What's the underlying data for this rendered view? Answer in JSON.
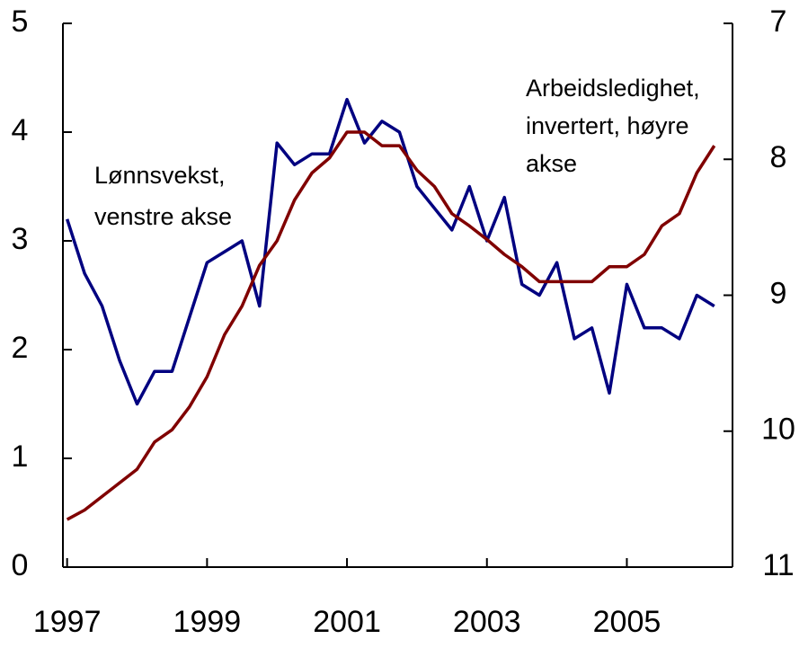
{
  "chart_data": {
    "type": "line",
    "x": [
      1997,
      1997.25,
      1997.5,
      1997.75,
      1998,
      1998.25,
      1998.5,
      1998.75,
      1999,
      1999.25,
      1999.5,
      1999.75,
      2000,
      2000.25,
      2000.5,
      2000.75,
      2001,
      2001.25,
      2001.5,
      2001.75,
      2002,
      2002.25,
      2002.5,
      2002.75,
      2003,
      2003.25,
      2003.5,
      2003.75,
      2004,
      2004.25,
      2004.5,
      2004.75,
      2005,
      2005.25,
      2005.5,
      2005.75,
      2006,
      2006.25
    ],
    "series": [
      {
        "color": "#000080",
        "axis": "y",
        "values": [
          3.2,
          2.7,
          2.4,
          1.9,
          1.5,
          1.8,
          1.8,
          2.3,
          2.8,
          2.9,
          3.0,
          2.4,
          3.9,
          3.7,
          3.8,
          3.8,
          4.3,
          3.9,
          4.1,
          4.0,
          3.5,
          3.3,
          3.1,
          3.5,
          3.0,
          3.4,
          2.6,
          2.5,
          2.8,
          2.1,
          2.2,
          1.6,
          2.6,
          2.2,
          2.2,
          2.1,
          2.5,
          2.4
        ]
      },
      {
        "color": "#800000",
        "axis": "y2",
        "values": [
          10.65,
          10.58,
          10.48,
          10.38,
          10.28,
          10.08,
          9.99,
          9.82,
          9.6,
          9.29,
          9.08,
          8.78,
          8.6,
          8.3,
          8.1,
          7.99,
          7.8,
          7.8,
          7.9,
          7.9,
          8.08,
          8.2,
          8.4,
          8.49,
          8.59,
          8.7,
          8.79,
          8.9,
          8.9,
          8.9,
          8.9,
          8.79,
          8.79,
          8.7,
          8.49,
          8.4,
          8.1,
          7.9
        ]
      }
    ],
    "xlim": [
      1996.94,
      2006.51
    ],
    "xticks": [
      1997,
      1999,
      2001,
      2003,
      2005
    ],
    "ylim": [
      0,
      5
    ],
    "yticks": [
      0,
      1,
      2,
      3,
      4,
      5
    ],
    "y2lim": [
      7,
      11
    ],
    "y2ticks": [
      7,
      8,
      9,
      10,
      11
    ],
    "y2_inverted": true,
    "annotations": [
      {
        "lines": [
          "Lønnsvekst,",
          "venstre akse"
        ]
      },
      {
        "lines": [
          "Arbeidsledighet,",
          "invertert, høyre",
          "akse"
        ]
      }
    ]
  }
}
